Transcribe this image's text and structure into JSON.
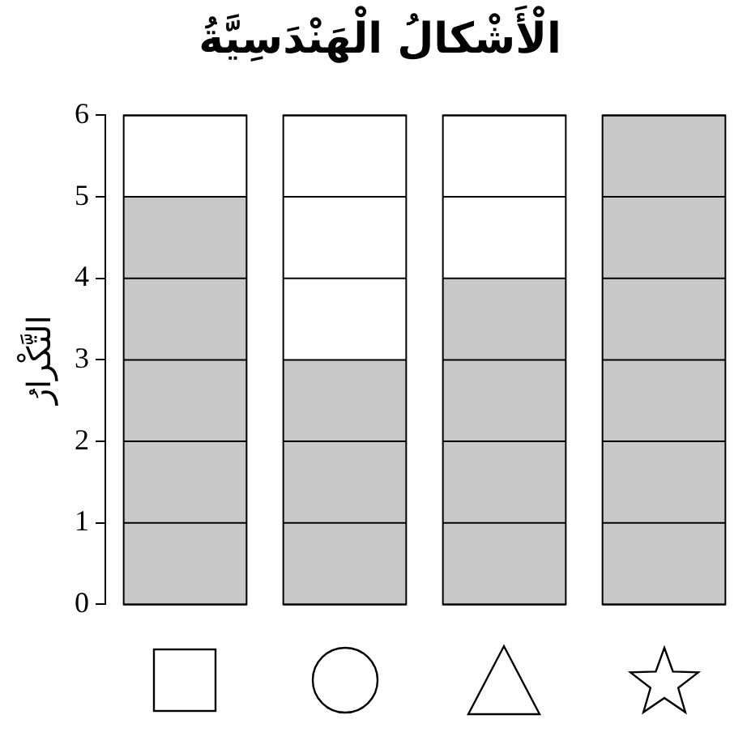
{
  "chart_data": {
    "type": "bar",
    "title": "الْأَشْكالُ الْهَنْدَسِيَّةُ",
    "ylabel": "التَّكْرارُ",
    "categories": [
      null,
      null,
      null,
      null
    ],
    "values": [
      5,
      3,
      4,
      6
    ],
    "color": "#c8c8c8",
    "ylim": [
      0,
      6
    ],
    "yticks": [
      0,
      1,
      2,
      3,
      4,
      5,
      6
    ],
    "grid": "y",
    "legend": false
  }
}
